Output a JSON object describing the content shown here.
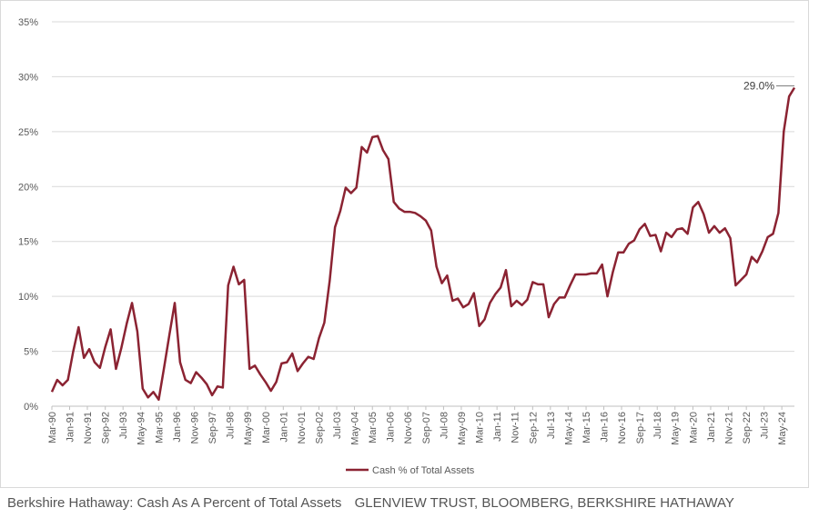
{
  "chart_data": {
    "type": "line",
    "caption": "Berkshire Hathaway: Cash As A Percent of Total Assets",
    "source": "GLENVIEW TRUST, BLOOMBERG, BERKSHIRE HATHAWAY",
    "x": [
      1990.17,
      1990.42,
      1990.67,
      1990.92,
      1991.17,
      1991.42,
      1991.67,
      1991.92,
      1992.17,
      1992.42,
      1992.67,
      1992.92,
      1993.17,
      1993.42,
      1993.67,
      1993.92,
      1994.17,
      1994.42,
      1994.67,
      1994.92,
      1995.17,
      1995.42,
      1995.67,
      1995.92,
      1996.17,
      1996.42,
      1996.67,
      1996.92,
      1997.17,
      1997.42,
      1997.67,
      1997.92,
      1998.17,
      1998.42,
      1998.67,
      1998.92,
      1999.17,
      1999.42,
      1999.67,
      1999.92,
      2000.17,
      2000.42,
      2000.67,
      2000.92,
      2001.17,
      2001.42,
      2001.67,
      2001.92,
      2002.17,
      2002.42,
      2002.67,
      2002.92,
      2003.17,
      2003.42,
      2003.67,
      2003.92,
      2004.17,
      2004.42,
      2004.67,
      2004.92,
      2005.17,
      2005.42,
      2005.67,
      2005.92,
      2006.17,
      2006.42,
      2006.67,
      2006.92,
      2007.17,
      2007.42,
      2007.67,
      2007.92,
      2008.17,
      2008.42,
      2008.67,
      2008.92,
      2009.17,
      2009.42,
      2009.67,
      2009.92,
      2010.17,
      2010.42,
      2010.67,
      2010.92,
      2011.17,
      2011.42,
      2011.67,
      2011.92,
      2012.17,
      2012.42,
      2012.67,
      2012.92,
      2013.17,
      2013.42,
      2013.67,
      2013.92,
      2014.17,
      2014.42,
      2014.67,
      2014.92,
      2015.17,
      2015.42,
      2015.67,
      2015.92,
      2016.17,
      2016.42,
      2016.67,
      2016.92,
      2017.17,
      2017.42,
      2017.67,
      2017.92,
      2018.17,
      2018.42,
      2018.67,
      2018.92,
      2019.17,
      2019.42,
      2019.67,
      2019.92,
      2020.17,
      2020.42,
      2020.67,
      2020.92,
      2021.17,
      2021.42,
      2021.67,
      2021.92,
      2022.17,
      2022.42,
      2022.67,
      2022.92,
      2023.17,
      2023.42,
      2023.67,
      2023.92,
      2024.17,
      2024.42,
      2024.67,
      2024.92
    ],
    "series": [
      {
        "name": "Cash % of Total Assets",
        "color": "#8b2332",
        "values": [
          1.3,
          2.4,
          1.9,
          2.4,
          5.0,
          7.2,
          4.4,
          5.2,
          4.0,
          3.5,
          5.4,
          7.0,
          3.4,
          5.3,
          7.5,
          9.4,
          6.8,
          1.6,
          0.8,
          1.3,
          0.6,
          3.5,
          6.5,
          9.4,
          4.0,
          2.4,
          2.1,
          3.1,
          2.6,
          2.0,
          1.0,
          1.8,
          1.7,
          11.0,
          12.7,
          11.1,
          11.5,
          3.4,
          3.7,
          2.9,
          2.2,
          1.4,
          2.2,
          3.9,
          4.0,
          4.8,
          3.2,
          3.9,
          4.5,
          4.3,
          6.2,
          7.6,
          11.4,
          16.3,
          17.8,
          19.9,
          19.4,
          19.9,
          23.6,
          23.1,
          24.5,
          24.6,
          23.3,
          22.5,
          18.6,
          18.0,
          17.7,
          17.7,
          17.6,
          17.3,
          16.9,
          16.0,
          12.7,
          11.2,
          11.9,
          9.6,
          9.8,
          9.0,
          9.3,
          10.3,
          7.3,
          7.9,
          9.4,
          10.2,
          10.8,
          12.4,
          9.1,
          9.6,
          9.2,
          9.7,
          11.3,
          11.1,
          11.1,
          8.1,
          9.3,
          9.9,
          9.9,
          11.0,
          12.0,
          12.0,
          12.0,
          12.1,
          12.1,
          12.9,
          10.0,
          12.2,
          14.0,
          14.0,
          14.8,
          15.1,
          16.1,
          16.6,
          15.5,
          15.6,
          14.1,
          15.8,
          15.4,
          16.1,
          16.2,
          15.7,
          18.1,
          18.6,
          17.5,
          15.8,
          16.4,
          15.8,
          16.2,
          15.3,
          11.0,
          11.5,
          12.0,
          13.6,
          13.1,
          14.1,
          15.4,
          15.7,
          17.6,
          25.0,
          28.2,
          29.0
        ]
      }
    ],
    "annotations": [
      {
        "text": "29.0%",
        "x": 2024.92,
        "y": 29.0
      }
    ],
    "xlim": [
      1990.17,
      2024.92
    ],
    "xticks": [
      {
        "value": 1990.17,
        "label": "Mar-90"
      },
      {
        "value": 1991.0,
        "label": "Jan-91"
      },
      {
        "value": 1991.83,
        "label": "Nov-91"
      },
      {
        "value": 1992.67,
        "label": "Sep-92"
      },
      {
        "value": 1993.5,
        "label": "Jul-93"
      },
      {
        "value": 1994.33,
        "label": "May-94"
      },
      {
        "value": 1995.17,
        "label": "Mar-95"
      },
      {
        "value": 1996.0,
        "label": "Jan-96"
      },
      {
        "value": 1996.83,
        "label": "Nov-96"
      },
      {
        "value": 1997.67,
        "label": "Sep-97"
      },
      {
        "value": 1998.5,
        "label": "Jul-98"
      },
      {
        "value": 1999.33,
        "label": "May-99"
      },
      {
        "value": 2000.17,
        "label": "Mar-00"
      },
      {
        "value": 2001.0,
        "label": "Jan-01"
      },
      {
        "value": 2001.83,
        "label": "Nov-01"
      },
      {
        "value": 2002.67,
        "label": "Sep-02"
      },
      {
        "value": 2003.5,
        "label": "Jul-03"
      },
      {
        "value": 2004.33,
        "label": "May-04"
      },
      {
        "value": 2005.17,
        "label": "Mar-05"
      },
      {
        "value": 2006.0,
        "label": "Jan-06"
      },
      {
        "value": 2006.83,
        "label": "Nov-06"
      },
      {
        "value": 2007.67,
        "label": "Sep-07"
      },
      {
        "value": 2008.5,
        "label": "Jul-08"
      },
      {
        "value": 2009.33,
        "label": "May-09"
      },
      {
        "value": 2010.17,
        "label": "Mar-10"
      },
      {
        "value": 2011.0,
        "label": "Jan-11"
      },
      {
        "value": 2011.83,
        "label": "Nov-11"
      },
      {
        "value": 2012.67,
        "label": "Sep-12"
      },
      {
        "value": 2013.5,
        "label": "Jul-13"
      },
      {
        "value": 2014.33,
        "label": "May-14"
      },
      {
        "value": 2015.17,
        "label": "Mar-15"
      },
      {
        "value": 2016.0,
        "label": "Jan-16"
      },
      {
        "value": 2016.83,
        "label": "Nov-16"
      },
      {
        "value": 2017.67,
        "label": "Sep-17"
      },
      {
        "value": 2018.5,
        "label": "Jul-18"
      },
      {
        "value": 2019.33,
        "label": "May-19"
      },
      {
        "value": 2020.17,
        "label": "Mar-20"
      },
      {
        "value": 2021.0,
        "label": "Jan-21"
      },
      {
        "value": 2021.83,
        "label": "Nov-21"
      },
      {
        "value": 2022.67,
        "label": "Sep-22"
      },
      {
        "value": 2023.5,
        "label": "Jul-23"
      },
      {
        "value": 2024.33,
        "label": "May-24"
      }
    ],
    "ylim": [
      0,
      35
    ],
    "yticks": [
      {
        "value": 0,
        "label": "0%"
      },
      {
        "value": 5,
        "label": "5%"
      },
      {
        "value": 10,
        "label": "10%"
      },
      {
        "value": 15,
        "label": "15%"
      },
      {
        "value": 20,
        "label": "20%"
      },
      {
        "value": 25,
        "label": "25%"
      },
      {
        "value": 30,
        "label": "30%"
      },
      {
        "value": 35,
        "label": "35%"
      }
    ],
    "grid": true
  }
}
